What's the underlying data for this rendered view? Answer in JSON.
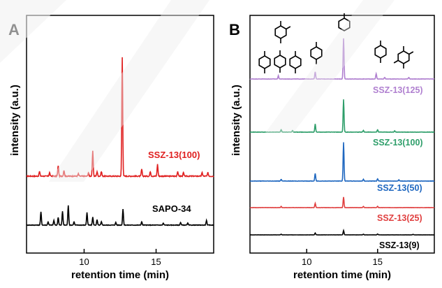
{
  "chart_data": [
    {
      "panel_label": "A",
      "type": "line",
      "xlabel": "retention time (min)",
      "ylabel": "intensity (a.u.)",
      "xlim": [
        6.0,
        19.0
      ],
      "xticks": [
        10,
        15
      ],
      "y_ticks_shown": false,
      "grid": false,
      "series": [
        {
          "name": "SSZ-13(100)",
          "color": "#e02020",
          "peaks": [
            {
              "x": 6.9,
              "h": 0.04
            },
            {
              "x": 7.6,
              "h": 0.03
            },
            {
              "x": 8.2,
              "h": 0.09
            },
            {
              "x": 8.6,
              "h": 0.05
            },
            {
              "x": 9.6,
              "h": 0.02
            },
            {
              "x": 10.3,
              "h": 0.03
            },
            {
              "x": 10.6,
              "h": 0.21
            },
            {
              "x": 10.9,
              "h": 0.04
            },
            {
              "x": 11.2,
              "h": 0.04
            },
            {
              "x": 12.65,
              "h": 1.0
            },
            {
              "x": 14.0,
              "h": 0.06
            },
            {
              "x": 14.6,
              "h": 0.04
            },
            {
              "x": 15.1,
              "h": 0.1
            },
            {
              "x": 16.5,
              "h": 0.04
            },
            {
              "x": 16.9,
              "h": 0.03
            },
            {
              "x": 18.2,
              "h": 0.03
            },
            {
              "x": 18.6,
              "h": 0.03
            }
          ]
        },
        {
          "name": "SAPO-34",
          "color": "#000000",
          "peaks": [
            {
              "x": 7.0,
              "h": 0.2
            },
            {
              "x": 7.5,
              "h": 0.05
            },
            {
              "x": 7.9,
              "h": 0.07
            },
            {
              "x": 8.2,
              "h": 0.12
            },
            {
              "x": 8.5,
              "h": 0.21
            },
            {
              "x": 8.9,
              "h": 0.3
            },
            {
              "x": 9.3,
              "h": 0.05
            },
            {
              "x": 10.2,
              "h": 0.19
            },
            {
              "x": 10.6,
              "h": 0.12
            },
            {
              "x": 10.9,
              "h": 0.08
            },
            {
              "x": 11.2,
              "h": 0.05
            },
            {
              "x": 12.2,
              "h": 0.04
            },
            {
              "x": 12.7,
              "h": 0.24
            },
            {
              "x": 14.0,
              "h": 0.05
            },
            {
              "x": 15.5,
              "h": 0.03
            },
            {
              "x": 16.7,
              "h": 0.04
            },
            {
              "x": 17.2,
              "h": 0.03
            },
            {
              "x": 18.5,
              "h": 0.07
            }
          ]
        }
      ]
    },
    {
      "panel_label": "B",
      "type": "line",
      "xlabel": "retention time (min)",
      "ylabel": "intensity (a.u.)",
      "xlim": [
        6.0,
        19.0
      ],
      "xticks": [
        10,
        15
      ],
      "y_ticks_shown": false,
      "grid": false,
      "series": [
        {
          "name": "SSZ-13(125)",
          "color": "#b080d0",
          "peaks": [
            {
              "x": 8.0,
              "h": 0.08
            },
            {
              "x": 10.6,
              "h": 0.18
            },
            {
              "x": 12.6,
              "h": 1.0
            },
            {
              "x": 14.9,
              "h": 0.13
            },
            {
              "x": 15.5,
              "h": 0.04
            },
            {
              "x": 17.2,
              "h": 0.04
            }
          ]
        },
        {
          "name": "SSZ-13(100)",
          "color": "#2e9e6a",
          "peaks": [
            {
              "x": 8.2,
              "h": 0.06
            },
            {
              "x": 9.0,
              "h": 0.04
            },
            {
              "x": 10.6,
              "h": 0.2
            },
            {
              "x": 12.6,
              "h": 0.81
            },
            {
              "x": 14.0,
              "h": 0.04
            },
            {
              "x": 15.0,
              "h": 0.06
            },
            {
              "x": 16.2,
              "h": 0.03
            }
          ]
        },
        {
          "name": "SSZ-13(50)",
          "color": "#2068c0",
          "peaks": [
            {
              "x": 8.2,
              "h": 0.04
            },
            {
              "x": 10.6,
              "h": 0.17
            },
            {
              "x": 12.6,
              "h": 0.87
            },
            {
              "x": 14.0,
              "h": 0.04
            },
            {
              "x": 15.0,
              "h": 0.05
            },
            {
              "x": 16.5,
              "h": 0.03
            }
          ]
        },
        {
          "name": "SSZ-13(25)",
          "color": "#e04040",
          "peaks": [
            {
              "x": 8.2,
              "h": 0.04
            },
            {
              "x": 10.6,
              "h": 0.15
            },
            {
              "x": 12.6,
              "h": 0.36
            },
            {
              "x": 14.0,
              "h": 0.04
            },
            {
              "x": 15.0,
              "h": 0.04
            }
          ]
        },
        {
          "name": "SSZ-13(9)",
          "color": "#000000",
          "peaks": [
            {
              "x": 8.2,
              "h": 0.04
            },
            {
              "x": 10.6,
              "h": 0.11
            },
            {
              "x": 12.6,
              "h": 0.26
            },
            {
              "x": 14.0,
              "h": 0.04
            },
            {
              "x": 15.0,
              "h": 0.05
            },
            {
              "x": 17.5,
              "h": 0.03
            }
          ]
        }
      ],
      "structures": [
        {
          "name": "trimethylbenzene-icon",
          "n_methyl": 3
        },
        {
          "name": "toluene-icon",
          "n_methyl": 1
        },
        {
          "name": "xylene-icon-left",
          "n_methyl": 2
        },
        {
          "name": "xylene-icon-center",
          "n_methyl": 2
        },
        {
          "name": "xylene-icon-right",
          "n_methyl": 2
        },
        {
          "name": "dimethylbenzene-icon",
          "n_methyl": 2
        },
        {
          "name": "para-xylene-icon",
          "n_methyl": 2
        },
        {
          "name": "tetramethylbenzene-icon",
          "n_methyl": 4
        },
        {
          "name": "pentamethylbenzene-icon",
          "n_methyl": 4
        }
      ]
    }
  ]
}
